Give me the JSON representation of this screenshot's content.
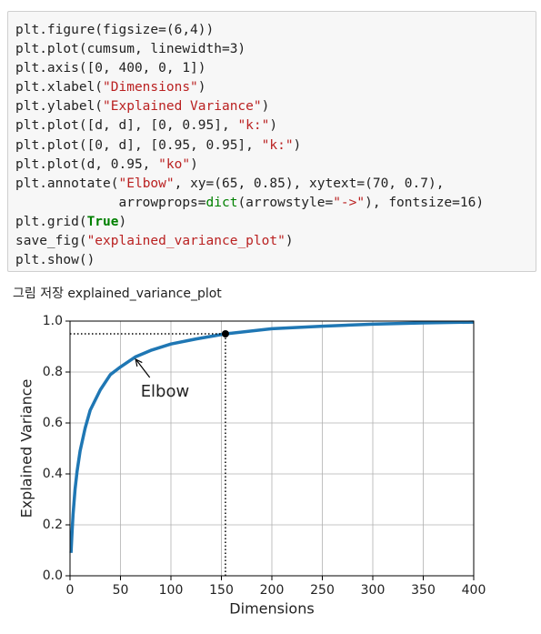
{
  "code": {
    "lines": [
      [
        "plt.figure(figsize=(6,4))"
      ],
      [
        "plt.plot(cumsum, linewidth=3)"
      ],
      [
        "plt.axis([0, 400, 0, 1])"
      ],
      [
        "plt.xlabel(",
        {
          "text": "\"Dimensions\"",
          "color": "#ba2121"
        },
        ")"
      ],
      [
        "plt.ylabel(",
        {
          "text": "\"Explained Variance\"",
          "color": "#ba2121"
        },
        ")"
      ],
      [
        "plt.plot([d, d], [0, 0.95], ",
        {
          "text": "\"k:\"",
          "color": "#ba2121"
        },
        ")"
      ],
      [
        "plt.plot([0, d], [0.95, 0.95], ",
        {
          "text": "\"k:\"",
          "color": "#ba2121"
        },
        ")"
      ],
      [
        "plt.plot(d, 0.95, ",
        {
          "text": "\"ko\"",
          "color": "#ba2121"
        },
        ")"
      ],
      [
        "plt.annotate(",
        {
          "text": "\"Elbow\"",
          "color": "#ba2121"
        },
        ", xy=(65, 0.85), xytext=(70, 0.7),"
      ],
      [
        "             arrowprops=",
        {
          "text": "dict",
          "color": "#008000"
        },
        "(arrowstyle=",
        {
          "text": "\"->\"",
          "color": "#ba2121"
        },
        "), fontsize=16)"
      ],
      [
        "plt.grid(",
        {
          "text": "True",
          "color": "#008000",
          "bold": true
        },
        ")"
      ],
      [
        "save_fig(",
        {
          "text": "\"explained_variance_plot\"",
          "color": "#ba2121"
        },
        ")"
      ],
      [
        "plt.show()"
      ]
    ]
  },
  "output": "그림 저장 explained_variance_plot",
  "chart_data": {
    "type": "line",
    "x_label": "Dimensions",
    "y_label": "Explained Variance",
    "x": [
      1,
      2,
      3,
      5,
      7,
      10,
      15,
      20,
      30,
      40,
      50,
      65,
      80,
      100,
      125,
      154,
      200,
      250,
      300,
      350,
      400
    ],
    "series": [
      {
        "color": "#1f77b4",
        "values": [
          0.09,
          0.17,
          0.24,
          0.34,
          0.41,
          0.49,
          0.58,
          0.65,
          0.73,
          0.79,
          0.82,
          0.86,
          0.885,
          0.91,
          0.93,
          0.95,
          0.97,
          0.98,
          0.988,
          0.993,
          0.996
        ]
      }
    ],
    "marker": {
      "x": 154,
      "y": 0.95,
      "color": "#000000"
    },
    "annotation": {
      "text": "Elbow",
      "xy": [
        65,
        0.85
      ],
      "xytext": [
        70,
        0.7
      ]
    },
    "xlim": [
      0,
      400
    ],
    "ylim": [
      0,
      1
    ],
    "xticks": [
      0,
      50,
      100,
      150,
      200,
      250,
      300,
      350,
      400
    ],
    "yticks": [
      {
        "value": 0,
        "label": "0.0"
      },
      0.2,
      0.4,
      0.6,
      0.8,
      {
        "value": 1,
        "label": "1.0"
      }
    ],
    "grid": true
  }
}
